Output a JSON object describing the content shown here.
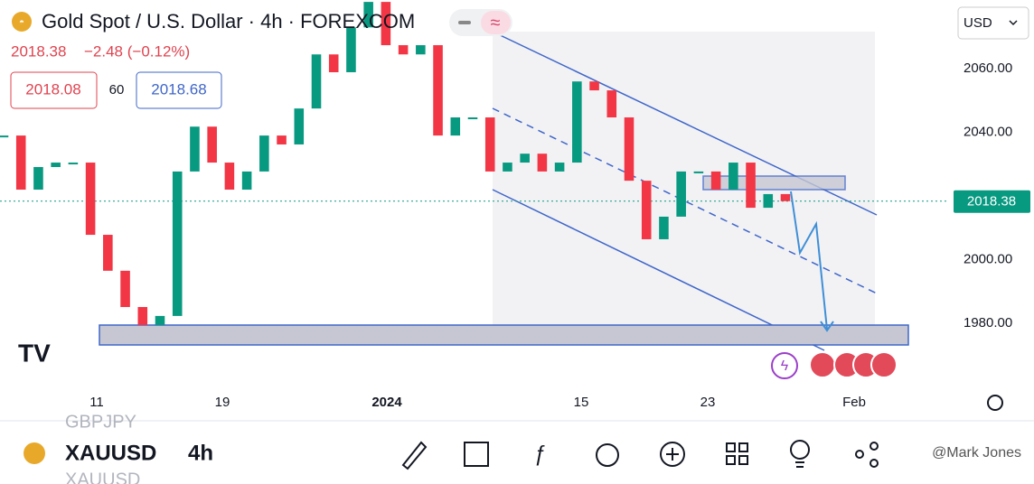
{
  "header": {
    "title": "Gold Spot / U.S. Dollar · 4h · FOREXCOM",
    "last_price": "2018.38",
    "change": "−2.48 (−0.12%)",
    "bid": "2018.08",
    "spread": "60",
    "ask": "2018.68"
  },
  "currency": "USD",
  "chart_data": {
    "type": "candle",
    "values": [
      2039.0,
      2022.0,
      2029.1,
      2030.5,
      2030.5,
      2007.8,
      1996.5,
      1985.1,
      1979.4,
      1982.3,
      2027.7,
      2041.8,
      2030.5,
      2022.0,
      2027.7,
      2039.0,
      2036.2,
      2047.5,
      2064.5,
      2058.9,
      2073.0,
      2081.0,
      2067.4,
      2064.5,
      2067.4,
      2039.0,
      2044.7,
      2044.7,
      2027.7,
      2030.5,
      2033.3,
      2027.7,
      2030.5,
      2056.0,
      2053.2,
      2044.7,
      2024.8,
      2006.4,
      2013.5,
      2027.7,
      2027.7,
      2022.0,
      2030.5,
      2016.3,
      2020.6,
      2018.38
    ],
    "up_color": "#089981",
    "down_color": "#f23645",
    "ylim": [
      1962.4,
      2081.6
    ],
    "yticks": [
      {
        "value": 1980,
        "label": "1980.00"
      },
      {
        "value": 2000,
        "label": "2000.00"
      },
      {
        "value": 2040,
        "label": "2040.00"
      },
      {
        "value": 2060,
        "label": "2060.00"
      }
    ],
    "last": 2018.38,
    "last_label": "2018.38",
    "x_labels": [
      "11",
      "19",
      "2024",
      "15",
      "23",
      "Feb"
    ]
  },
  "footer": {
    "symbol": "XAUUSD",
    "interval": "4h",
    "prev_symbol": "GBPJPY",
    "next_symbol": "XAUUSD",
    "watermark": "@Mark Jones"
  }
}
